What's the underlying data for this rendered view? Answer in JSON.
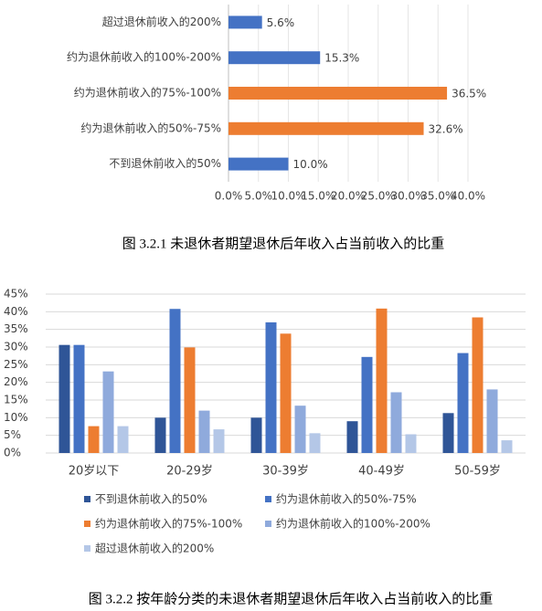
{
  "chart_data": [
    {
      "type": "hbar",
      "title": "图 3.2.1  未退休者期望退休后年收入占当前收入的比重",
      "categories": [
        "超过退休前收入的200%",
        "约为退休前收入的100%-200%",
        "约为退休前收入的75%-100%",
        "约为退休前收入的50%-75%",
        "不到退休前收入的50%"
      ],
      "values": [
        5.6,
        15.3,
        36.5,
        32.6,
        10.0
      ],
      "value_labels": [
        "5.6%",
        "15.3%",
        "36.5%",
        "32.6%",
        "10.0%"
      ],
      "colors": [
        "#4472c4",
        "#4472c4",
        "#ed7d31",
        "#ed7d31",
        "#4472c4"
      ],
      "xlim": [
        0,
        40
      ],
      "xticks": [
        {
          "value": 0,
          "label": "0.0%"
        },
        {
          "value": 5,
          "label": "5.0%"
        },
        {
          "value": 10,
          "label": "10.0%"
        },
        {
          "value": 15,
          "label": "15.0%"
        },
        {
          "value": 20,
          "label": "20.0%"
        },
        {
          "value": 25,
          "label": "25.0%"
        },
        {
          "value": 30,
          "label": "30.0%"
        },
        {
          "value": 35,
          "label": "35.0%"
        },
        {
          "value": 40,
          "label": "40.0%"
        }
      ],
      "grid": true
    },
    {
      "type": "bar",
      "title": "图 3.2.2  按年龄分类的未退休者期望退休后年收入占当前收入的比重",
      "categories": [
        "20岁以下",
        "20-29岁",
        "30-39岁",
        "40-49岁",
        "50-59岁"
      ],
      "series": [
        {
          "name": "不到退休前收入的50%",
          "color": "#2f5597",
          "values": [
            30.6,
            10.0,
            10.0,
            9.0,
            11.3
          ]
        },
        {
          "name": "约为退休前收入的50%-75%",
          "color": "#4472c4",
          "values": [
            30.6,
            40.8,
            37.0,
            27.2,
            28.3
          ]
        },
        {
          "name": "约为退休前收入的75%-100%",
          "color": "#ed7d31",
          "values": [
            7.6,
            29.9,
            33.8,
            40.9,
            38.4
          ]
        },
        {
          "name": "约为退休前收入的100%-200%",
          "color": "#8faadc",
          "values": [
            23.1,
            12.0,
            13.4,
            17.2,
            18.0
          ]
        },
        {
          "name": "超过退休前收入的200%",
          "color": "#b4c7e7",
          "values": [
            7.6,
            6.7,
            5.6,
            5.3,
            3.6
          ]
        }
      ],
      "ylim": [
        0,
        45
      ],
      "yticks": [
        {
          "value": 0,
          "label": "0%"
        },
        {
          "value": 5,
          "label": "5%"
        },
        {
          "value": 10,
          "label": "10%"
        },
        {
          "value": 15,
          "label": "15%"
        },
        {
          "value": 20,
          "label": "20%"
        },
        {
          "value": 25,
          "label": "25%"
        },
        {
          "value": 30,
          "label": "30%"
        },
        {
          "value": 35,
          "label": "35%"
        },
        {
          "value": 40,
          "label": "40%"
        },
        {
          "value": 45,
          "label": "45%"
        }
      ],
      "grid": true
    }
  ]
}
